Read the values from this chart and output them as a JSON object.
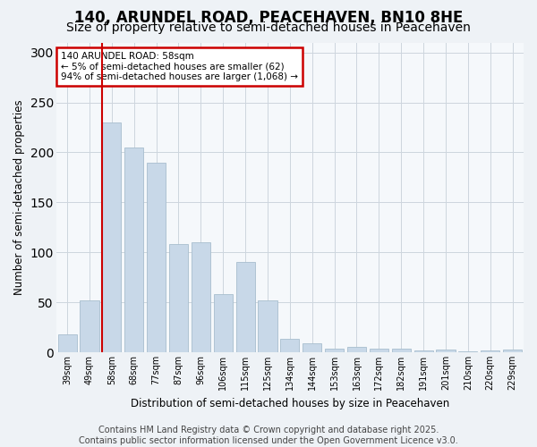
{
  "title": "140, ARUNDEL ROAD, PEACEHAVEN, BN10 8HE",
  "subtitle": "Size of property relative to semi-detached houses in Peacehaven",
  "xlabel": "Distribution of semi-detached houses by size in Peacehaven",
  "ylabel": "Number of semi-detached properties",
  "categories": [
    "39sqm",
    "49sqm",
    "58sqm",
    "68sqm",
    "77sqm",
    "87sqm",
    "96sqm",
    "106sqm",
    "115sqm",
    "125sqm",
    "134sqm",
    "144sqm",
    "153sqm",
    "163sqm",
    "172sqm",
    "182sqm",
    "191sqm",
    "201sqm",
    "210sqm",
    "220sqm",
    "229sqm"
  ],
  "values": [
    18,
    52,
    230,
    205,
    190,
    108,
    110,
    58,
    90,
    52,
    13,
    9,
    4,
    5,
    4,
    4,
    2,
    3,
    1,
    2,
    3
  ],
  "bar_color": "#c8d8e8",
  "bar_edgecolor": "#a8bece",
  "highlight_line_index": 2,
  "annotation_title": "140 ARUNDEL ROAD: 58sqm",
  "annotation_line1": "← 5% of semi-detached houses are smaller (62)",
  "annotation_line2": "94% of semi-detached houses are larger (1,068) →",
  "annotation_box_color": "#cc0000",
  "ylim": [
    0,
    310
  ],
  "yticks": [
    0,
    50,
    100,
    150,
    200,
    250,
    300
  ],
  "footer1": "Contains HM Land Registry data © Crown copyright and database right 2025.",
  "footer2": "Contains public sector information licensed under the Open Government Licence v3.0.",
  "bg_color": "#eef2f6",
  "plot_bg_color": "#f5f8fb",
  "grid_color": "#cdd5de",
  "title_fontsize": 12,
  "subtitle_fontsize": 10,
  "footer_fontsize": 7
}
